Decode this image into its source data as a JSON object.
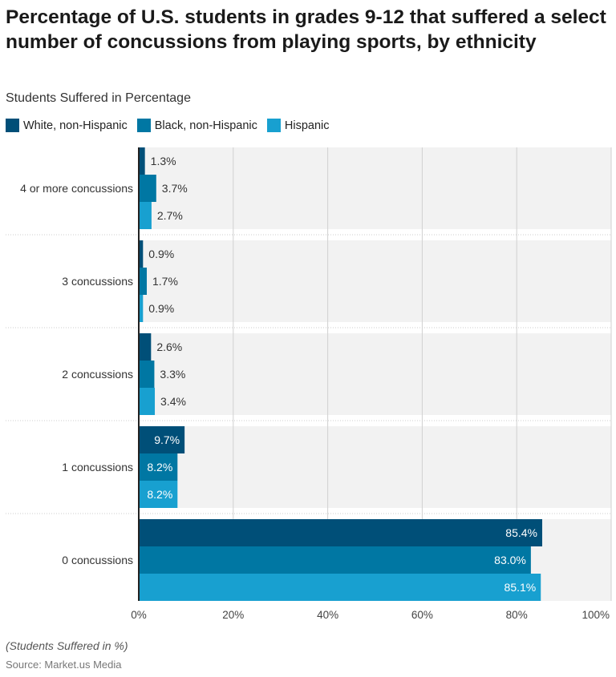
{
  "chart_data": {
    "type": "bar",
    "orientation": "horizontal",
    "title": "Percentage of U.S. students in grades 9-12 that suffered a select number of concussions from playing sports, by ethnicity",
    "subtitle": "Students Suffered in Percentage",
    "categories": [
      "4 or more concussions",
      "3 concussions",
      "2 concussions",
      "1 concussions",
      "0 concussions"
    ],
    "series": [
      {
        "name": "White, non-Hispanic",
        "color": "#004f78",
        "values": [
          1.3,
          0.9,
          2.6,
          9.7,
          85.4
        ]
      },
      {
        "name": "Black, non-Hispanic",
        "color": "#0077a3",
        "values": [
          3.7,
          1.7,
          3.3,
          8.2,
          83.0
        ]
      },
      {
        "name": "Hispanic",
        "color": "#18a0d0",
        "values": [
          2.7,
          0.9,
          3.4,
          8.2,
          85.1
        ]
      }
    ],
    "xlim": [
      0,
      100
    ],
    "x_ticks": [
      "0%",
      "20%",
      "40%",
      "60%",
      "80%",
      "100%"
    ],
    "value_suffix": "%",
    "grid": true,
    "legend_position": "top-left",
    "note": "(Students Suffered in %)",
    "source": "Source: Market.us Media"
  }
}
